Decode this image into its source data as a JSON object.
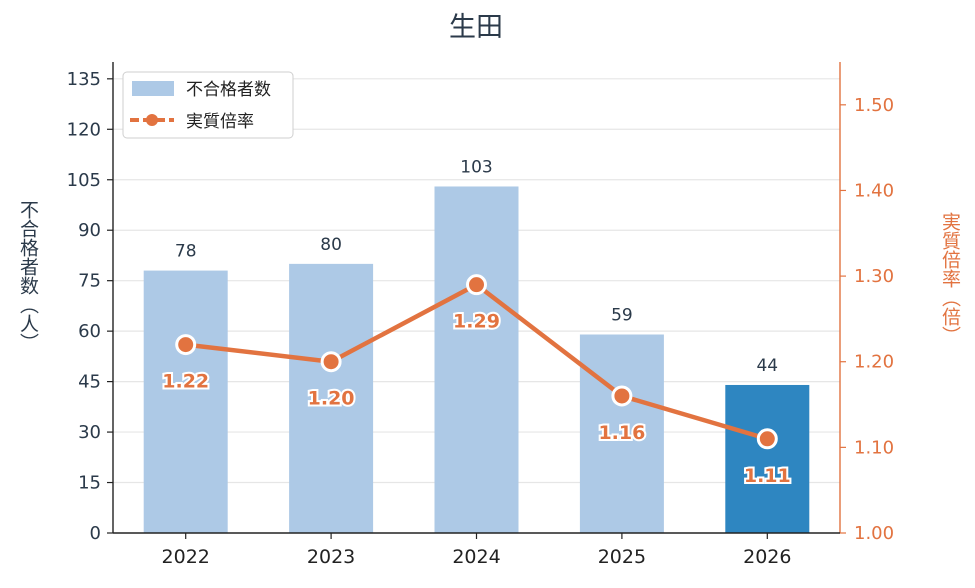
{
  "chart_data": {
    "type": "bar+line",
    "title": "生田",
    "categories": [
      "2022",
      "2023",
      "2024",
      "2025",
      "2026"
    ],
    "series": [
      {
        "name": "不合格者数",
        "type": "bar",
        "axis": "left",
        "values": [
          78,
          80,
          103,
          59,
          44
        ]
      },
      {
        "name": "実質倍率",
        "type": "line",
        "axis": "right",
        "values": [
          1.22,
          1.2,
          1.29,
          1.16,
          1.11
        ]
      }
    ],
    "data_labels_bar": [
      "78",
      "80",
      "103",
      "59",
      "44"
    ],
    "data_labels_line": [
      "1.22",
      "1.20",
      "1.29",
      "1.16",
      "1.11"
    ],
    "ylabel_left": "不合格者数（人）",
    "ylabel_right": "実質倍率（倍）",
    "ylim_left": [
      0,
      140
    ],
    "ylim_right": [
      1.0,
      1.55
    ],
    "yticks_left": [
      "0",
      "15",
      "30",
      "45",
      "60",
      "75",
      "90",
      "105",
      "120",
      "135"
    ],
    "yticks_right": [
      "1.00",
      "1.10",
      "1.20",
      "1.30",
      "1.40",
      "1.50"
    ],
    "grid": true,
    "legend_position": "top-left",
    "highlight_category": "2026",
    "colors": {
      "bar": "#adc9e6",
      "bar_highlight": "#2e86c1",
      "line": "#e27340",
      "axis_right": "#e27340",
      "text": "#2b3a4a",
      "grid": "#e6e6e6"
    }
  }
}
